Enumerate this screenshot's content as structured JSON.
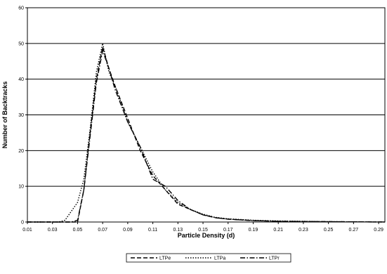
{
  "chart_data": {
    "type": "line",
    "title": "",
    "xlabel": "Particle Density (d)",
    "ylabel": "Number of Backtracks",
    "xlim": [
      0.01,
      0.295
    ],
    "ylim": [
      0,
      60
    ],
    "x_ticks": [
      "0.01",
      "0.03",
      "0.05",
      "0.07",
      "0.09",
      "0.11",
      "0.13",
      "0.15",
      "0.17",
      "0.19",
      "0.21",
      "0.23",
      "0.25",
      "0.27",
      "0.29"
    ],
    "y_ticks": [
      "0",
      "10",
      "20",
      "30",
      "40",
      "50",
      "60"
    ],
    "grid": "horizontal",
    "legend_position": "bottom",
    "series": [
      {
        "name": "LTPe",
        "style": "dashed",
        "color": "#000000",
        "points": [
          [
            0.01,
            0
          ],
          [
            0.045,
            0
          ],
          [
            0.05,
            0
          ],
          [
            0.055,
            9
          ],
          [
            0.06,
            25
          ],
          [
            0.065,
            40
          ],
          [
            0.07,
            49
          ],
          [
            0.075,
            43
          ],
          [
            0.08,
            38
          ],
          [
            0.09,
            29
          ],
          [
            0.1,
            20
          ],
          [
            0.11,
            13
          ],
          [
            0.12,
            9
          ],
          [
            0.13,
            5
          ],
          [
            0.14,
            3.5
          ],
          [
            0.15,
            2
          ],
          [
            0.16,
            1.2
          ],
          [
            0.17,
            0.8
          ],
          [
            0.19,
            0.4
          ],
          [
            0.21,
            0.2
          ],
          [
            0.25,
            0.1
          ],
          [
            0.295,
            0
          ]
        ]
      },
      {
        "name": "LTPa",
        "style": "dotted",
        "color": "#000000",
        "points": [
          [
            0.01,
            0
          ],
          [
            0.035,
            0
          ],
          [
            0.04,
            0.5
          ],
          [
            0.045,
            3
          ],
          [
            0.05,
            5.5
          ],
          [
            0.055,
            12
          ],
          [
            0.06,
            26
          ],
          [
            0.065,
            42
          ],
          [
            0.07,
            50
          ],
          [
            0.075,
            42
          ],
          [
            0.08,
            38
          ],
          [
            0.09,
            28
          ],
          [
            0.1,
            21
          ],
          [
            0.11,
            14
          ],
          [
            0.12,
            9
          ],
          [
            0.13,
            5.5
          ],
          [
            0.14,
            3.5
          ],
          [
            0.15,
            2.2
          ],
          [
            0.16,
            1.3
          ],
          [
            0.17,
            0.9
          ],
          [
            0.19,
            0.5
          ],
          [
            0.21,
            0.3
          ],
          [
            0.25,
            0.1
          ],
          [
            0.295,
            0
          ]
        ]
      },
      {
        "name": "LTPr",
        "style": "dash-dot",
        "color": "#000000",
        "points": [
          [
            0.01,
            0
          ],
          [
            0.045,
            0
          ],
          [
            0.05,
            0.5
          ],
          [
            0.055,
            9
          ],
          [
            0.06,
            24
          ],
          [
            0.065,
            39
          ],
          [
            0.07,
            48
          ],
          [
            0.075,
            43
          ],
          [
            0.08,
            37
          ],
          [
            0.09,
            28
          ],
          [
            0.1,
            21
          ],
          [
            0.11,
            12
          ],
          [
            0.12,
            10
          ],
          [
            0.13,
            6
          ],
          [
            0.14,
            3.5
          ],
          [
            0.15,
            2
          ],
          [
            0.16,
            1.2
          ],
          [
            0.17,
            0.8
          ],
          [
            0.19,
            0.4
          ],
          [
            0.21,
            0.2
          ],
          [
            0.25,
            0.1
          ],
          [
            0.295,
            0
          ]
        ]
      }
    ]
  }
}
